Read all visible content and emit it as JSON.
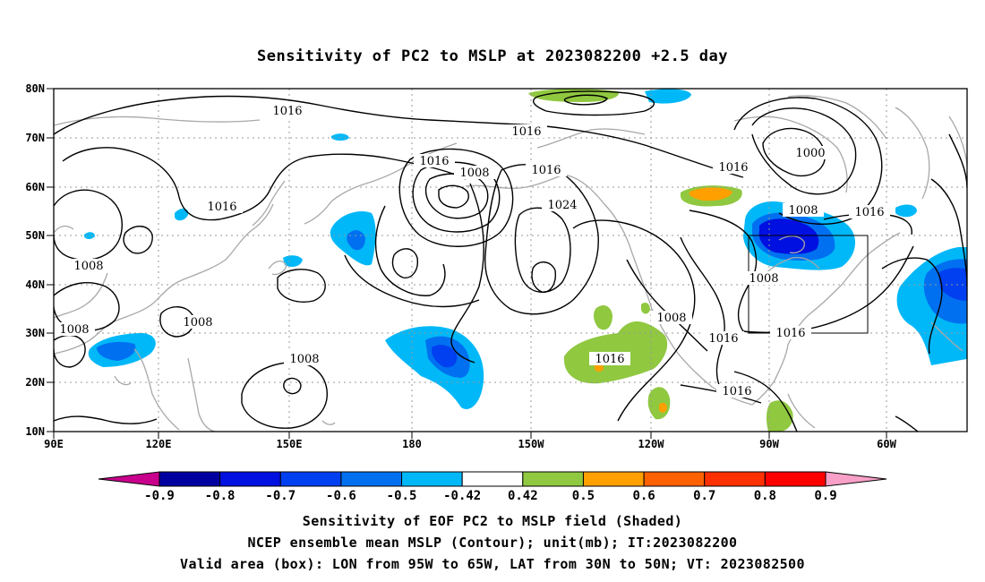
{
  "title": "Sensitivity of PC2 to MSLP at 2023082200 +2.5 day",
  "axes": {
    "lon_ticks": [
      "90E",
      "120E",
      "150E",
      "180",
      "150W",
      "120W",
      "90W",
      "60W"
    ],
    "lat_ticks": [
      "80N",
      "70N",
      "60N",
      "50N",
      "40N",
      "30N",
      "20N",
      "10N"
    ]
  },
  "contour_labels": [
    "1016",
    "1016",
    "1016",
    "1016",
    "1016",
    "1016",
    "1008",
    "1024",
    "1000",
    "1008",
    "1016",
    "1008",
    "1008",
    "1008",
    "1008",
    "1008",
    "1016",
    "1008",
    "1016",
    "1016",
    "1016"
  ],
  "colorbar": {
    "labels": [
      "-0.9",
      "-0.8",
      "-0.7",
      "-0.6",
      "-0.5",
      "-0.42",
      "0.42",
      "0.5",
      "0.6",
      "0.7",
      "0.8",
      "0.9"
    ],
    "colors": [
      "#0000a0",
      "#0010e0",
      "#0040f0",
      "#0070f0",
      "#00b8f8",
      "#ffffff",
      "#90c840",
      "#ffa000",
      "#ff6000",
      "#ff3000",
      "#ff0000"
    ],
    "low_end_color": "#c8008c",
    "high_end_color": "#f8a0c8"
  },
  "valid_box": {
    "lon_min": -95,
    "lon_max": -65,
    "lat_min": 30,
    "lat_max": 50
  },
  "captions": [
    "Sensitivity of EOF PC2 to MSLP field (Shaded)",
    "NCEP ensemble mean MSLP (Contour); unit(mb); IT:2023082200",
    "Valid area (box): LON from 95W to 65W, LAT from 30N to 50N; VT: 2023082500"
  ]
}
